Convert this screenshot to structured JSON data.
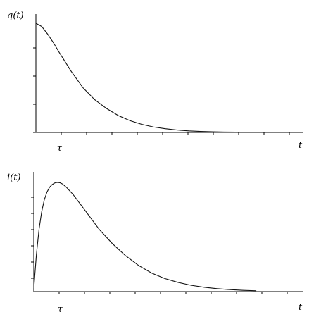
{
  "chart_data": [
    {
      "type": "line",
      "ylabel": "q(t)",
      "xlabel": "t",
      "x_tick_labels": [
        "τ"
      ],
      "tau": 1,
      "xlim": [
        0,
        10.6
      ],
      "ylim": [
        0,
        1
      ],
      "grid": false,
      "x": [
        0,
        0.25,
        0.5,
        0.75,
        1,
        1.5,
        2,
        2.5,
        3,
        3.5,
        4,
        4.5,
        5,
        5.5,
        6,
        6.5,
        7,
        7.5,
        8,
        8.5
      ],
      "values": [
        1.0,
        0.97,
        0.9,
        0.82,
        0.73,
        0.56,
        0.41,
        0.3,
        0.22,
        0.155,
        0.108,
        0.074,
        0.05,
        0.034,
        0.022,
        0.014,
        0.009,
        0.006,
        0.004,
        0.003
      ]
    },
    {
      "type": "line",
      "ylabel": "i(t)",
      "xlabel": "t",
      "x_tick_labels": [
        "τ"
      ],
      "tau": 1,
      "xlim": [
        0,
        9.6
      ],
      "ylim": [
        0,
        1
      ],
      "grid": false,
      "x": [
        0,
        0.1,
        0.2,
        0.3,
        0.4,
        0.5,
        0.6,
        0.7,
        0.8,
        0.9,
        1,
        1.1,
        1.25,
        1.5,
        1.75,
        2,
        2.5,
        3,
        3.5,
        4,
        4.5,
        5,
        5.5,
        6,
        6.5,
        7,
        7.5,
        8,
        8.5
      ],
      "values": [
        0.03,
        0.34,
        0.57,
        0.73,
        0.84,
        0.91,
        0.955,
        0.98,
        0.995,
        1.0,
        0.997,
        0.985,
        0.955,
        0.89,
        0.81,
        0.73,
        0.57,
        0.44,
        0.33,
        0.24,
        0.17,
        0.12,
        0.085,
        0.058,
        0.04,
        0.027,
        0.018,
        0.012,
        0.008
      ]
    }
  ]
}
